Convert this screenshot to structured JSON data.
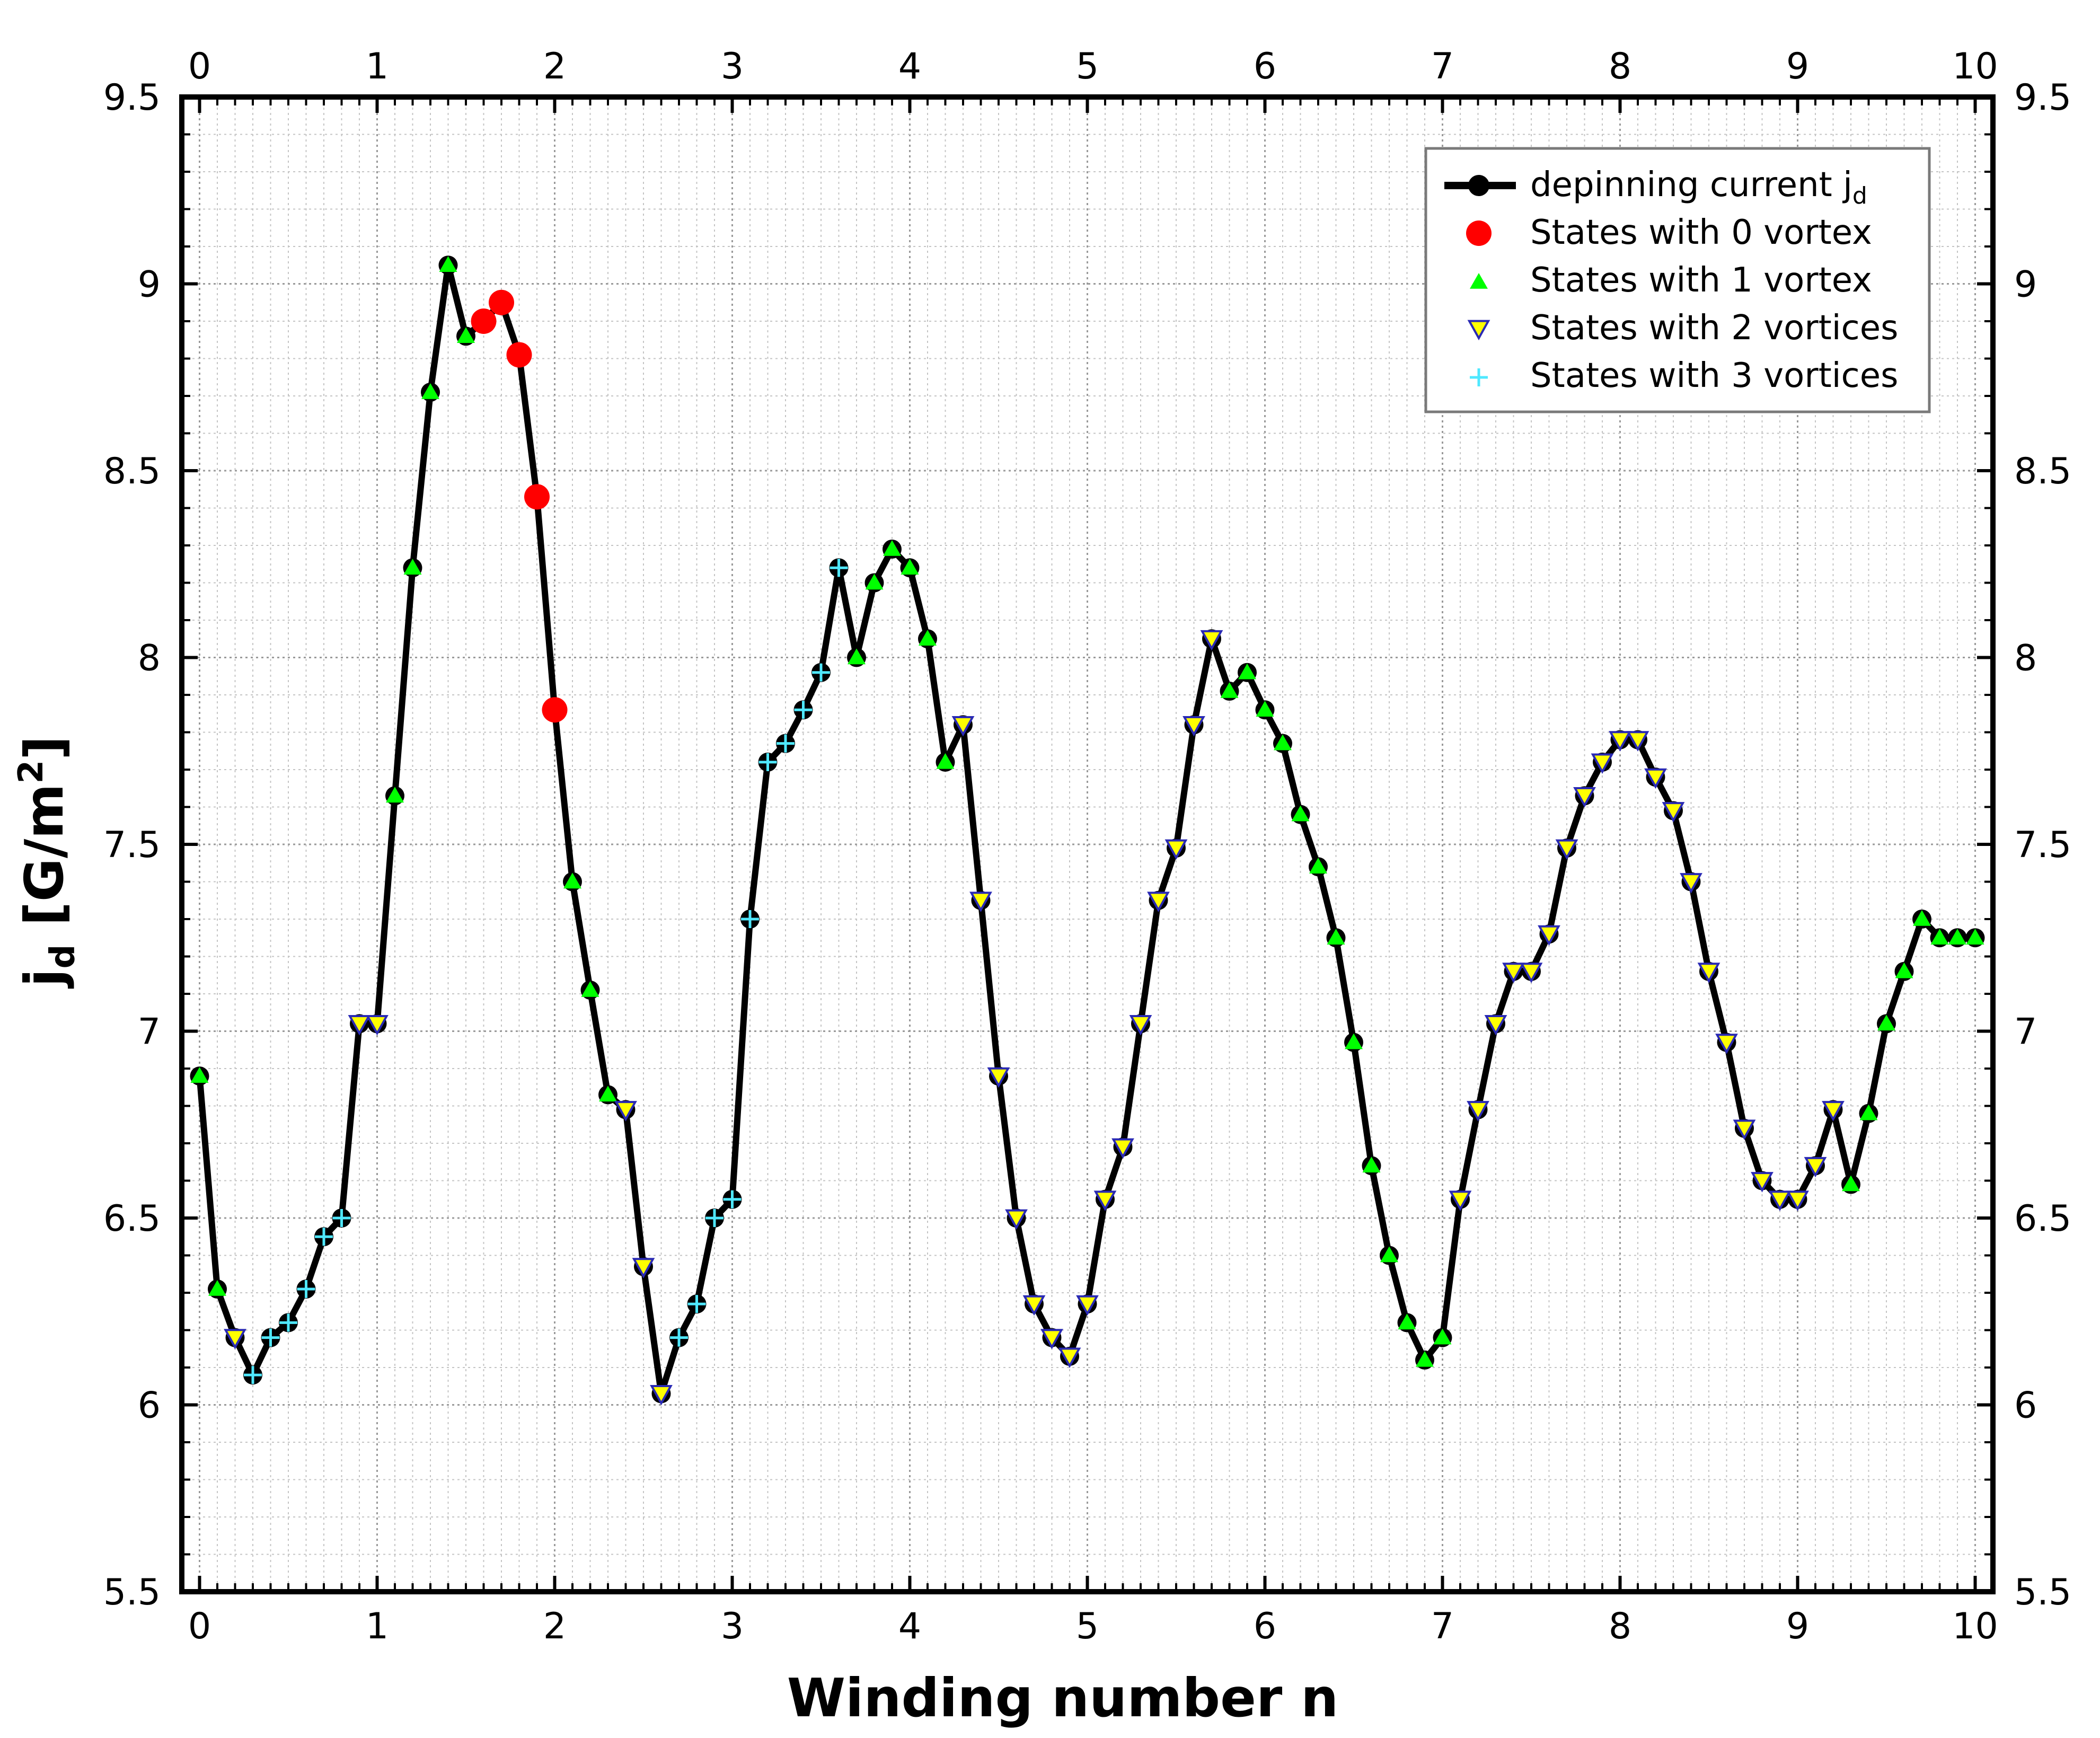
{
  "chart_data": {
    "type": "line",
    "xlabel": "Winding number n",
    "ylabel_main": "j",
    "ylabel_sub": "d",
    "ylabel_rest": " [G/m",
    "ylabel_sup": "2",
    "ylabel_end": "]",
    "xlim": [
      -0.1,
      10.1
    ],
    "ylim": [
      5.5,
      9.5
    ],
    "xticks": [
      0,
      1,
      2,
      3,
      4,
      5,
      6,
      7,
      8,
      9,
      10
    ],
    "xtick_labels": [
      "0",
      "1",
      "2",
      "3",
      "4",
      "5",
      "6",
      "7",
      "8",
      "9",
      "10"
    ],
    "yticks": [
      5.5,
      6,
      6.5,
      7,
      7.5,
      8,
      8.5,
      9,
      9.5
    ],
    "ytick_labels": [
      "5.5",
      "6",
      "6.5",
      "7",
      "7.5",
      "8",
      "8.5",
      "9",
      "9.5"
    ],
    "grid": true,
    "legend_position": "top-right",
    "line_color": "#000000",
    "series": [
      {
        "name": "depinning current j",
        "name_sub": "d",
        "marker": "line-circle",
        "color": "#000000",
        "x": [
          0,
          0.1,
          0.2,
          0.3,
          0.4,
          0.5,
          0.6,
          0.7,
          0.8,
          0.9,
          1.0,
          1.1,
          1.2,
          1.3,
          1.4,
          1.5,
          1.6,
          1.7,
          1.8,
          1.9,
          2.0,
          2.1,
          2.2,
          2.3,
          2.4,
          2.5,
          2.6,
          2.7,
          2.8,
          2.9,
          3.0,
          3.1,
          3.2,
          3.3,
          3.4,
          3.5,
          3.6,
          3.7,
          3.8,
          3.9,
          4.0,
          4.1,
          4.2,
          4.3,
          4.4,
          4.5,
          4.6,
          4.7,
          4.8,
          4.9,
          5.0,
          5.1,
          5.2,
          5.3,
          5.4,
          5.5,
          5.6,
          5.7,
          5.8,
          5.9,
          6.0,
          6.1,
          6.2,
          6.3,
          6.4,
          6.5,
          6.6,
          6.7,
          6.8,
          6.9,
          7.0,
          7.1,
          7.2,
          7.3,
          7.4,
          7.5,
          7.6,
          7.7,
          7.8,
          7.9,
          8.0,
          8.1,
          8.2,
          8.3,
          8.4,
          8.5,
          8.6,
          8.7,
          8.8,
          8.9,
          9.0,
          9.1,
          9.2,
          9.3,
          9.4,
          9.5,
          9.6,
          9.7,
          9.8,
          9.9,
          10.0
        ],
        "y": [
          6.88,
          6.31,
          6.18,
          6.08,
          6.18,
          6.22,
          6.31,
          6.45,
          6.5,
          7.02,
          7.02,
          7.63,
          8.24,
          8.71,
          9.05,
          8.86,
          8.9,
          8.95,
          8.81,
          8.43,
          7.86,
          7.4,
          7.11,
          6.83,
          6.79,
          6.37,
          6.03,
          6.18,
          6.27,
          6.5,
          6.55,
          7.3,
          7.72,
          7.77,
          7.86,
          7.96,
          8.24,
          8.0,
          8.2,
          8.29,
          8.24,
          8.05,
          7.72,
          7.82,
          7.35,
          6.88,
          6.5,
          6.27,
          6.18,
          6.13,
          6.27,
          6.55,
          6.69,
          7.02,
          7.35,
          7.49,
          7.82,
          8.05,
          7.91,
          7.96,
          7.86,
          7.77,
          7.58,
          7.44,
          7.25,
          6.97,
          6.64,
          6.4,
          6.22,
          6.12,
          6.18,
          6.55,
          6.79,
          7.02,
          7.16,
          7.16,
          7.26,
          7.49,
          7.63,
          7.72,
          7.78,
          7.78,
          7.68,
          7.59,
          7.4,
          7.16,
          6.97,
          6.74,
          6.6,
          6.55,
          6.55,
          6.64,
          6.79,
          6.59,
          6.78,
          7.02,
          7.16,
          7.3,
          7.25,
          7.25,
          7.25
        ],
        "state": [
          1,
          1,
          2,
          3,
          3,
          3,
          3,
          3,
          3,
          2,
          2,
          1,
          1,
          1,
          1,
          1,
          0,
          0,
          0,
          0,
          0,
          1,
          1,
          1,
          2,
          2,
          2,
          3,
          3,
          3,
          3,
          3,
          3,
          3,
          3,
          3,
          3,
          1,
          1,
          1,
          1,
          1,
          1,
          2,
          2,
          2,
          2,
          2,
          2,
          2,
          2,
          2,
          2,
          2,
          2,
          2,
          2,
          2,
          1,
          1,
          1,
          1,
          1,
          1,
          1,
          1,
          1,
          1,
          1,
          1,
          1,
          2,
          2,
          2,
          2,
          2,
          2,
          2,
          2,
          2,
          2,
          2,
          2,
          2,
          2,
          2,
          2,
          2,
          2,
          2,
          2,
          2,
          2,
          1,
          1,
          1,
          1,
          1,
          1,
          1,
          1
        ]
      },
      {
        "name": "States with 0 vortex",
        "marker": "circle",
        "color": "#ff0000"
      },
      {
        "name": "States with 1 vortex",
        "marker": "triangle-up",
        "color": "#00ff00"
      },
      {
        "name": "States with 2 vortices",
        "marker": "triangle-down",
        "color": "#ffff00",
        "edge_color": "#2a2ab4"
      },
      {
        "name": "States with 3 vortices",
        "marker": "plus",
        "color": "#4fe8ff"
      }
    ]
  }
}
